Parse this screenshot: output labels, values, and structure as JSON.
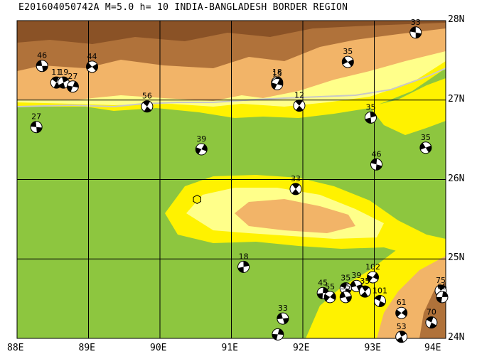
{
  "title": "E201604050742A  M=5.0  h= 10  INDIA-BANGLADESH BORDER REGION",
  "map": {
    "lon_range": [
      88,
      94
    ],
    "lat_range": [
      24,
      28
    ],
    "x_ticks": [
      "88E",
      "89E",
      "90E",
      "91E",
      "92E",
      "93E",
      "94E"
    ],
    "y_ticks": [
      "28N",
      "27N",
      "26N",
      "25N",
      "24N"
    ],
    "epicenter": {
      "lon": 90.52,
      "lat": 25.75,
      "marker": "hexagon"
    },
    "colors": {
      "lowland": "#8dc63f",
      "yellow": "#fff200",
      "light_yellow": "#ffff8a",
      "tan": "#f4b56b",
      "brown": "#a86a34",
      "border_line": "#c8c8c8"
    }
  },
  "mechanisms": [
    {
      "label": "46",
      "lon": 88.35,
      "lat": 27.43
    },
    {
      "label": "11",
      "lon": 88.55,
      "lat": 27.22
    },
    {
      "label": "19",
      "lon": 88.65,
      "lat": 27.22
    },
    {
      "label": "27",
      "lon": 88.78,
      "lat": 27.17
    },
    {
      "label": "44",
      "lon": 89.05,
      "lat": 27.42
    },
    {
      "label": "27",
      "lon": 88.27,
      "lat": 26.66
    },
    {
      "label": "56",
      "lon": 89.82,
      "lat": 26.92
    },
    {
      "label": "18",
      "lon": 91.64,
      "lat": 27.22
    },
    {
      "label": "15",
      "lon": 91.64,
      "lat": 27.2
    },
    {
      "label": "35",
      "lon": 92.63,
      "lat": 27.48
    },
    {
      "label": "33",
      "lon": 93.58,
      "lat": 27.85
    },
    {
      "label": "12",
      "lon": 91.95,
      "lat": 26.93
    },
    {
      "label": "35",
      "lon": 92.95,
      "lat": 26.78
    },
    {
      "label": "39",
      "lon": 90.58,
      "lat": 26.38
    },
    {
      "label": "35",
      "lon": 93.72,
      "lat": 26.4
    },
    {
      "label": "46",
      "lon": 93.03,
      "lat": 26.19
    },
    {
      "label": "33",
      "lon": 91.9,
      "lat": 25.88
    },
    {
      "label": "18",
      "lon": 91.17,
      "lat": 24.9
    },
    {
      "label": "102",
      "lon": 92.98,
      "lat": 24.77
    },
    {
      "label": "39",
      "lon": 92.75,
      "lat": 24.66
    },
    {
      "label": "35",
      "lon": 92.6,
      "lat": 24.63
    },
    {
      "label": "35",
      "lon": 92.87,
      "lat": 24.59
    },
    {
      "label": "45",
      "lon": 92.28,
      "lat": 24.57
    },
    {
      "label": "55",
      "lon": 92.38,
      "lat": 24.52
    },
    {
      "label": "35",
      "lon": 92.6,
      "lat": 24.52
    },
    {
      "label": "101",
      "lon": 93.08,
      "lat": 24.47
    },
    {
      "label": "75",
      "lon": 93.93,
      "lat": 24.6
    },
    {
      "label": "65",
      "lon": 93.95,
      "lat": 24.52
    },
    {
      "label": "61",
      "lon": 93.38,
      "lat": 24.32
    },
    {
      "label": "33",
      "lon": 91.72,
      "lat": 24.25
    },
    {
      "label": "70",
      "lon": 93.8,
      "lat": 24.2
    },
    {
      "label": "53",
      "lon": 93.38,
      "lat": 24.02
    },
    {
      "label": "",
      "lon": 91.65,
      "lat": 24.05
    }
  ]
}
